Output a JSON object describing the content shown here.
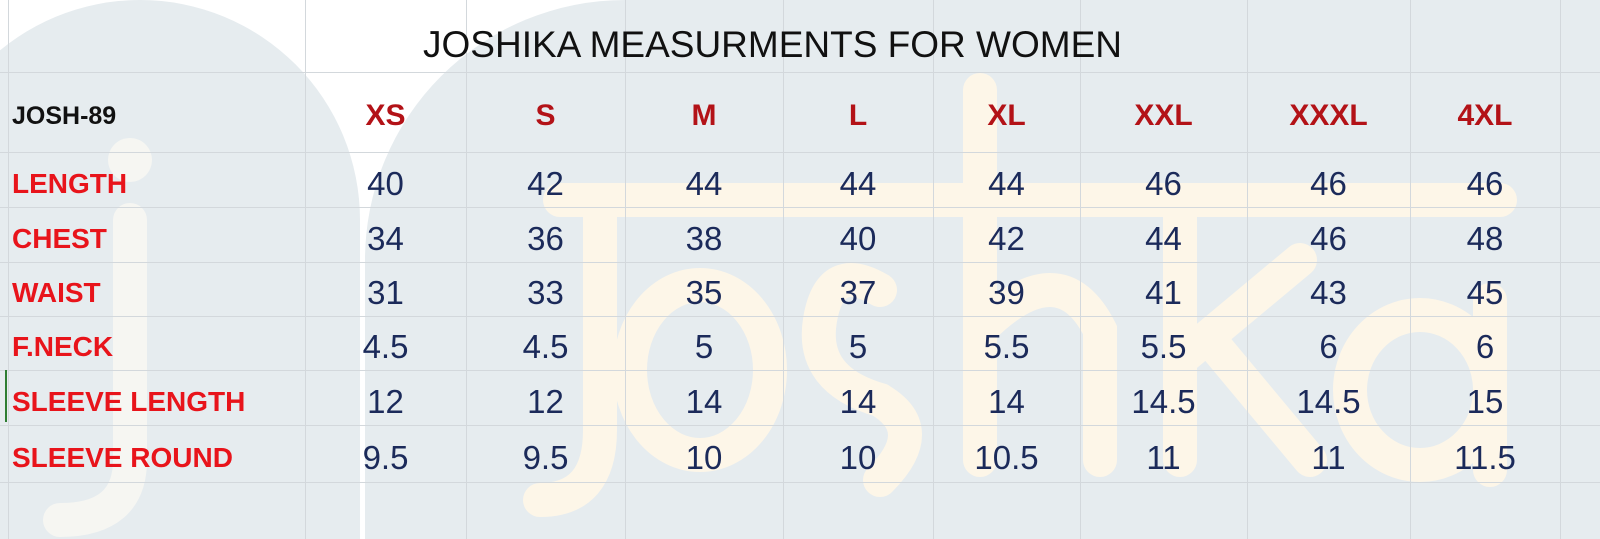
{
  "title": "JOSHIKA MEASURMENTS FOR WOMEN",
  "watermark": "joshika",
  "colors": {
    "size_header": "#b31217",
    "row_label": "#e8141b",
    "value": "#1b2a5a"
  },
  "table": {
    "code": "JOSH-89",
    "sizes": [
      "XS",
      "S",
      "M",
      "L",
      "XL",
      "XXL",
      "XXXL",
      "4XL"
    ],
    "rows": [
      {
        "label": "LENGTH",
        "values": [
          "40",
          "42",
          "44",
          "44",
          "44",
          "46",
          "46",
          "46"
        ]
      },
      {
        "label": "CHEST",
        "values": [
          "34",
          "36",
          "38",
          "40",
          "42",
          "44",
          "46",
          "48"
        ]
      },
      {
        "label": "WAIST",
        "values": [
          "31",
          "33",
          "35",
          "37",
          "39",
          "41",
          "43",
          "45"
        ]
      },
      {
        "label": "F.NECK",
        "values": [
          "4.5",
          "4.5",
          "5",
          "5",
          "5.5",
          "5.5",
          "6",
          "6"
        ]
      },
      {
        "label": "SLEEVE LENGTH",
        "values": [
          "12",
          "12",
          "14",
          "14",
          "14",
          "14.5",
          "14.5",
          "15"
        ]
      },
      {
        "label": "SLEEVE ROUND",
        "values": [
          "9.5",
          "9.5",
          "10",
          "10",
          "10.5",
          "11",
          "11",
          "11.5"
        ]
      }
    ]
  }
}
